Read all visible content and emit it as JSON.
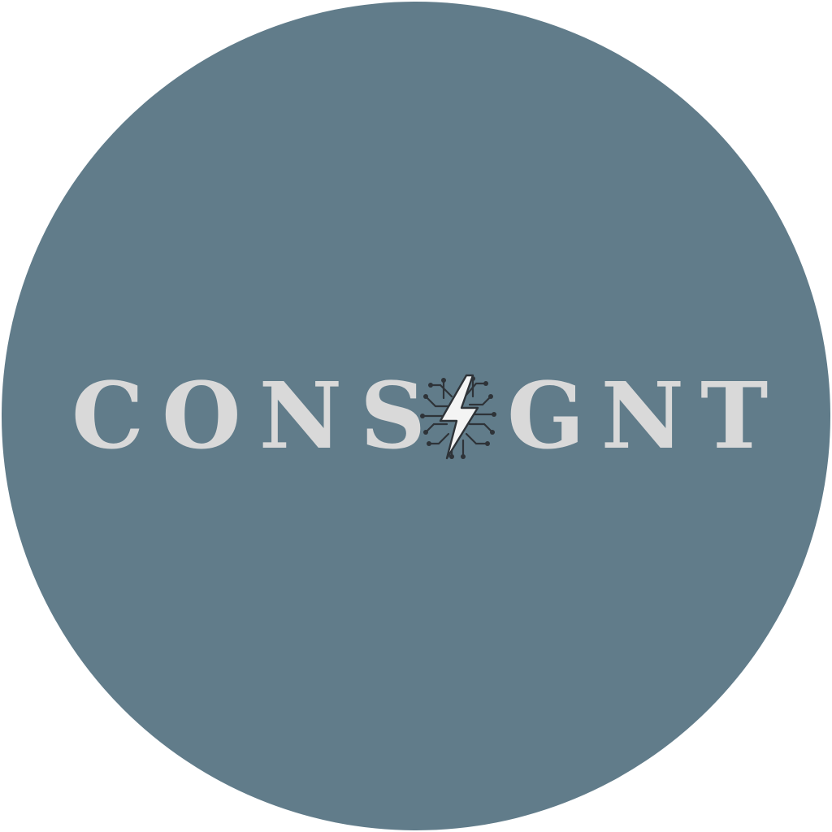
{
  "logo": {
    "wordmark_full": "CONSIGNT",
    "wordmark_left": "CONS",
    "wordmark_right": "GNT",
    "emblem": "lightning-circuit-icon"
  },
  "colors": {
    "background": "#ffffff",
    "circle": "#617c8a",
    "text": "#d9d9d9",
    "bolt_fill": "#f4f4f4",
    "bolt_outline": "#2e3338",
    "circuit": "#2e3338"
  }
}
